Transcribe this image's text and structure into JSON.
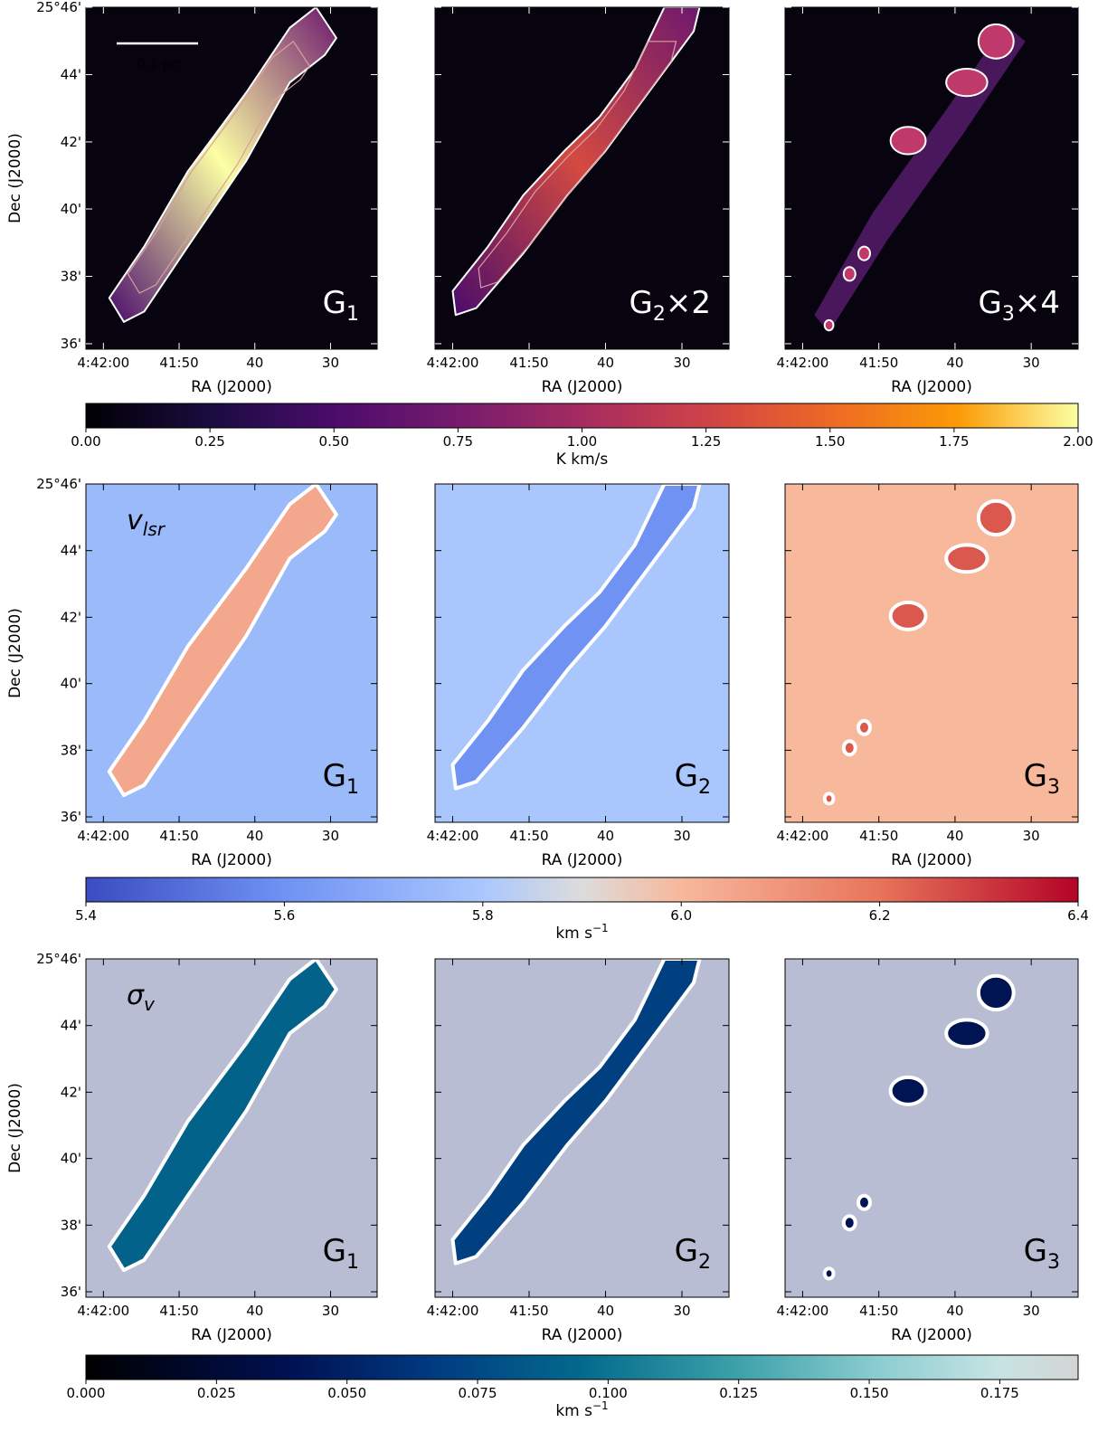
{
  "chart_data": {
    "type": "heatmap",
    "x_axis": {
      "label": "RA (J2000)",
      "ticks": [
        "4:42:00",
        "41:50",
        "40",
        "30"
      ]
    },
    "y_axis": {
      "label": "Dec (J2000)",
      "ticks": [
        "25°46'",
        "44'",
        "42'",
        "40'",
        "38'",
        "36'"
      ]
    },
    "scale_bar": {
      "label": "0.1 pc"
    },
    "rows": [
      {
        "quantity_label": "",
        "colormap": "inferno",
        "colorbar": {
          "label": "K km/s",
          "range": [
            0.0,
            2.0
          ],
          "ticks": [
            "0.00",
            "0.25",
            "0.50",
            "0.75",
            "1.00",
            "1.25",
            "1.50",
            "1.75",
            "2.00"
          ]
        },
        "panels": [
          {
            "label_main": "G",
            "label_sub": "1",
            "label_suffix": "",
            "component": "G1",
            "scale_factor": 1,
            "peak_value": 2.0
          },
          {
            "label_main": "G",
            "label_sub": "2",
            "label_suffix": "×2",
            "component": "G2",
            "scale_factor": 2,
            "peak_value": 1.3
          },
          {
            "label_main": "G",
            "label_sub": "3",
            "label_suffix": "×4",
            "component": "G3",
            "scale_factor": 4,
            "peak_value": 0.9
          }
        ]
      },
      {
        "quantity_label": "v",
        "quantity_sub": "lsr",
        "colormap": "coolwarm",
        "colorbar": {
          "label": "km s",
          "label_sup": "−1",
          "range": [
            5.4,
            6.4
          ],
          "ticks": [
            "5.4",
            "5.6",
            "5.8",
            "6.0",
            "6.2",
            "6.4"
          ]
        },
        "panels": [
          {
            "label_main": "G",
            "label_sub": "1",
            "label_suffix": "",
            "filament_value": 6.05,
            "background_value": 5.75
          },
          {
            "label_main": "G",
            "label_sub": "2",
            "label_suffix": "",
            "filament_value": 5.6,
            "background_value": 5.8
          },
          {
            "label_main": "G",
            "label_sub": "3",
            "label_suffix": "",
            "filament_value": 6.25,
            "background_value": 6.0
          }
        ]
      },
      {
        "quantity_label": "σ",
        "quantity_sub": "v",
        "colormap": "ocean",
        "colorbar": {
          "label": "km s",
          "label_sup": "−1",
          "range": [
            0.0,
            0.19
          ],
          "ticks": [
            "0.000",
            "0.025",
            "0.050",
            "0.075",
            "0.100",
            "0.125",
            "0.150",
            "0.175"
          ]
        },
        "panels": [
          {
            "label_main": "G",
            "label_sub": "1",
            "label_suffix": "",
            "filament_value": 0.09
          },
          {
            "label_main": "G",
            "label_sub": "2",
            "label_suffix": "",
            "filament_value": 0.07
          },
          {
            "label_main": "G",
            "label_sub": "3",
            "label_suffix": "",
            "filament_value": 0.04
          }
        ]
      }
    ]
  }
}
